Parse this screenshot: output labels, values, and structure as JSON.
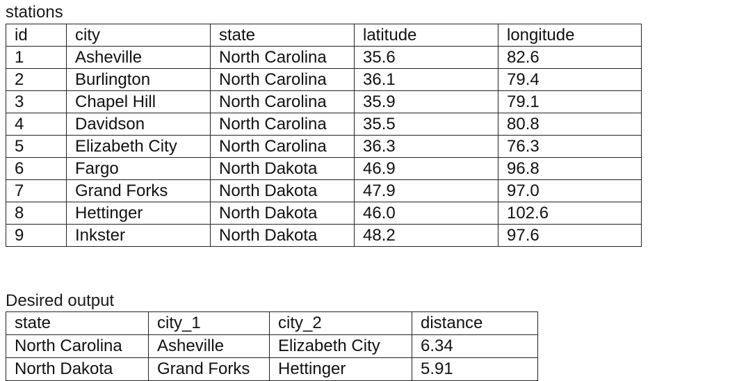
{
  "stations": {
    "caption": "stations",
    "columns": [
      "id",
      "city",
      "state",
      "latitude",
      "longitude"
    ],
    "rows": [
      [
        "1",
        "Asheville",
        "North Carolina",
        "35.6",
        "82.6"
      ],
      [
        "2",
        "Burlington",
        "North Carolina",
        "36.1",
        "79.4"
      ],
      [
        "3",
        "Chapel Hill",
        "North Carolina",
        "35.9",
        "79.1"
      ],
      [
        "4",
        "Davidson",
        "North Carolina",
        "35.5",
        "80.8"
      ],
      [
        "5",
        "Elizabeth City",
        "North Carolina",
        "36.3",
        "76.3"
      ],
      [
        "6",
        "Fargo",
        "North Dakota",
        "46.9",
        "96.8"
      ],
      [
        "7",
        "Grand Forks",
        "North Dakota",
        "47.9",
        "97.0"
      ],
      [
        "8",
        "Hettinger",
        "North Dakota",
        "46.0",
        "102.6"
      ],
      [
        "9",
        "Inkster",
        "North Dakota",
        "48.2",
        "97.6"
      ]
    ]
  },
  "output": {
    "caption": "Desired output",
    "columns": [
      "state",
      "city_1",
      "city_2",
      "distance"
    ],
    "rows": [
      [
        "North Carolina",
        "Asheville",
        "Elizabeth City",
        "6.34"
      ],
      [
        "North Dakota",
        "Grand Forks",
        "Hettinger",
        "5.91"
      ]
    ]
  }
}
